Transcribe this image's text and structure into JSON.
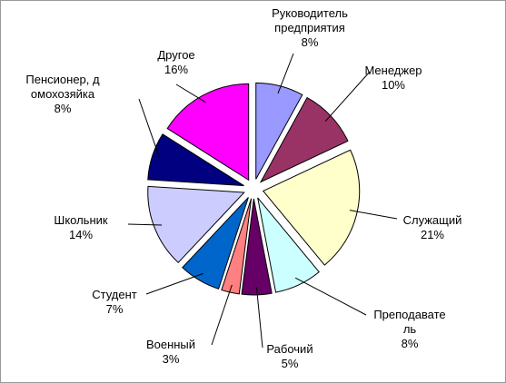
{
  "chart_data": {
    "type": "pie",
    "categories": [
      "Руководитель\nпредприятия",
      "Менеджер",
      "Служащий",
      "Преподавате\nль",
      "Рабочий",
      "Военный",
      "Студент",
      "Школьник",
      "Пенсионер, д\nомохозяйка",
      "Другое"
    ],
    "values": [
      8,
      10,
      21,
      8,
      5,
      3,
      7,
      14,
      8,
      16
    ],
    "value_labels": [
      "8%",
      "10%",
      "21%",
      "8%",
      "5%",
      "3%",
      "7%",
      "14%",
      "8%",
      "16%"
    ],
    "colors": [
      "#9999ff",
      "#993366",
      "#ffffcc",
      "#ccffff",
      "#660066",
      "#ff8080",
      "#0066cc",
      "#ccccff",
      "#000080",
      "#ff00ff"
    ]
  }
}
